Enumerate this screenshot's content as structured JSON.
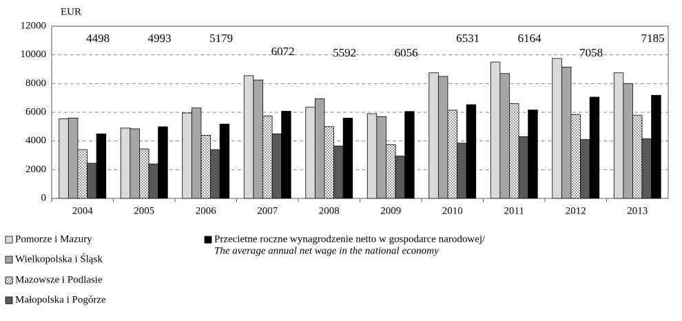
{
  "chart_data": {
    "type": "bar",
    "y_axis_label": "EUR",
    "categories": [
      "2004",
      "2005",
      "2006",
      "2007",
      "2008",
      "2009",
      "2010",
      "2011",
      "2012",
      "2013"
    ],
    "series": [
      {
        "name": "Pomorze i Mazury",
        "color": "#d9d9d9",
        "values": [
          5550,
          4900,
          5950,
          8550,
          6350,
          5900,
          8750,
          9500,
          9750,
          8750
        ]
      },
      {
        "name": "Wielkopolska i Śląsk",
        "color": "#a6a6a6",
        "values": [
          5600,
          4850,
          6300,
          8250,
          6950,
          5700,
          8500,
          8700,
          9150,
          8000
        ]
      },
      {
        "name": "Mazowsze i Podlasie",
        "color": "#ffffff",
        "pattern": "dots",
        "values": [
          3400,
          3450,
          4400,
          5750,
          5000,
          3750,
          6150,
          6600,
          5850,
          5800
        ]
      },
      {
        "name": "Małopolska i Pogórze",
        "color": "#595959",
        "values": [
          2450,
          2400,
          3400,
          4500,
          3650,
          2950,
          3850,
          4300,
          4100,
          4150
        ]
      },
      {
        "name": "Przecietne roczne wynagrodzenie netto w gospodarce narodowej/",
        "name_translation": "The average annual net wage in the national economy",
        "color": "#000000",
        "show_values": true,
        "values": [
          4498,
          4993,
          5179,
          6072,
          5592,
          6056,
          6531,
          6164,
          7058,
          7185
        ]
      }
    ],
    "ylim": [
      0,
      12000
    ],
    "yticks": [
      0,
      2000,
      4000,
      6000,
      8000,
      10000,
      12000
    ],
    "grid": true
  }
}
